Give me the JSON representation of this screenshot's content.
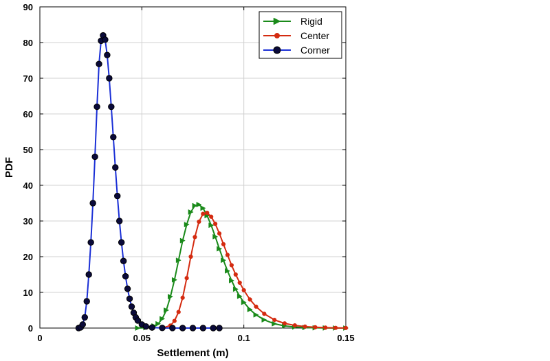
{
  "chart_data": {
    "type": "line",
    "xlabel": "Settlement (m)",
    "ylabel": "PDF",
    "xlim": [
      0,
      0.15
    ],
    "ylim": [
      0,
      90
    ],
    "xticks": [
      0,
      0.05,
      0.1,
      0.15
    ],
    "xtick_labels": [
      "0",
      "0.05",
      "0.1",
      "0.15"
    ],
    "yticks": [
      0,
      10,
      20,
      30,
      40,
      50,
      60,
      70,
      80,
      90
    ],
    "ytick_labels": [
      "0",
      "10",
      "20",
      "30",
      "40",
      "50",
      "60",
      "70",
      "80",
      "90"
    ],
    "grid": true,
    "legend_position": "top-right",
    "series": [
      {
        "name": "Rigid",
        "color": "#1a8a1a",
        "marker": "triangle-right",
        "x": [
          0.048,
          0.052,
          0.056,
          0.058,
          0.06,
          0.062,
          0.064,
          0.066,
          0.068,
          0.07,
          0.072,
          0.074,
          0.076,
          0.078,
          0.08,
          0.082,
          0.084,
          0.086,
          0.088,
          0.09,
          0.092,
          0.094,
          0.096,
          0.098,
          0.1,
          0.103,
          0.106,
          0.11,
          0.115,
          0.12,
          0.125,
          0.13,
          0.135,
          0.14,
          0.145,
          0.15
        ],
        "y": [
          0,
          0.1,
          0.6,
          1.2,
          2.6,
          5.0,
          8.8,
          13.5,
          19.0,
          24.5,
          29.0,
          32.5,
          34.3,
          34.6,
          33.6,
          31.5,
          28.8,
          25.6,
          22.2,
          19.0,
          16.0,
          13.3,
          10.9,
          8.9,
          7.2,
          5.2,
          3.7,
          2.3,
          1.2,
          0.6,
          0.3,
          0.15,
          0.07,
          0.03,
          0.01,
          0
        ]
      },
      {
        "name": "Center",
        "color": "#d42b10",
        "marker": "dot",
        "x": [
          0.06,
          0.064,
          0.066,
          0.068,
          0.07,
          0.072,
          0.074,
          0.076,
          0.078,
          0.08,
          0.082,
          0.084,
          0.086,
          0.088,
          0.09,
          0.092,
          0.094,
          0.096,
          0.098,
          0.1,
          0.103,
          0.106,
          0.11,
          0.115,
          0.12,
          0.125,
          0.13,
          0.135,
          0.14,
          0.145,
          0.15
        ],
        "y": [
          0,
          0.7,
          2.0,
          4.5,
          8.5,
          14.0,
          20.0,
          25.5,
          29.8,
          32.0,
          32.3,
          31.2,
          29.2,
          26.5,
          23.5,
          20.5,
          17.6,
          15.0,
          12.7,
          10.6,
          8.0,
          6.0,
          4.0,
          2.3,
          1.3,
          0.75,
          0.42,
          0.23,
          0.12,
          0.06,
          0.03
        ]
      },
      {
        "name": "Corner",
        "color": "#1a2fd6",
        "marker": "circle",
        "x": [
          0.019,
          0.02,
          0.021,
          0.022,
          0.023,
          0.024,
          0.025,
          0.026,
          0.027,
          0.028,
          0.029,
          0.03,
          0.031,
          0.032,
          0.033,
          0.034,
          0.035,
          0.036,
          0.037,
          0.038,
          0.039,
          0.04,
          0.041,
          0.042,
          0.043,
          0.044,
          0.045,
          0.046,
          0.047,
          0.048,
          0.05,
          0.052,
          0.055,
          0.06,
          0.065,
          0.07,
          0.075,
          0.08,
          0.085,
          0.088
        ],
        "y": [
          0,
          0.2,
          1.0,
          3.0,
          7.5,
          15.0,
          24.0,
          35.0,
          48.0,
          62.0,
          74.0,
          80.5,
          82.0,
          80.8,
          76.5,
          70.0,
          62.0,
          53.5,
          45.0,
          37.0,
          30.0,
          24.0,
          18.8,
          14.5,
          11.0,
          8.2,
          6.0,
          4.3,
          3.0,
          2.1,
          1.0,
          0.45,
          0.15,
          0.03,
          0.01,
          0,
          0,
          0,
          0,
          0
        ]
      }
    ]
  }
}
